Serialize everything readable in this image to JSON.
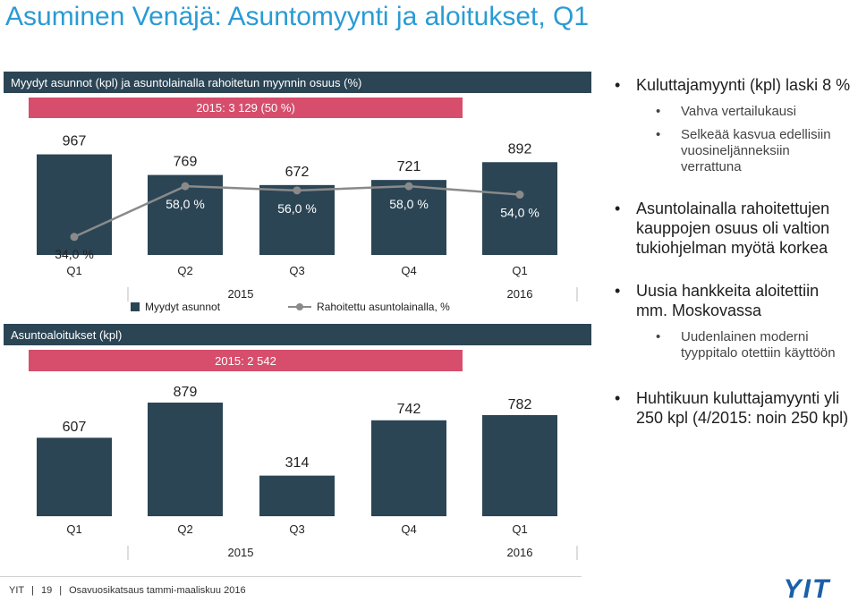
{
  "slide_title": "Asuminen Venäjä: Asuntomyynti ja aloitukset, Q1",
  "colors": {
    "title": "#2a9bd4",
    "bar": "#2b4555",
    "banner": "#d64e6c",
    "line": "#8a8a8a",
    "logo": "#1b5fa8"
  },
  "top_chart": {
    "header": "Myydyt asunnot (kpl) ja asuntolainalla rahoitetun myynnin osuus (%)",
    "banner": "2015: 3 129 (50 %)",
    "legend": {
      "bars": "Myydyt asunnot",
      "line": "Rahoitettu asuntolainalla, %"
    }
  },
  "bottom_chart": {
    "header": "Asuntoaloitukset (kpl)",
    "banner": "2015: 2 542"
  },
  "chart_data": [
    {
      "type": "bar",
      "categories": [
        "Q1",
        "Q2",
        "Q3",
        "Q4",
        "Q1"
      ],
      "year_labels": [
        "2015",
        "2016"
      ],
      "series": [
        {
          "name": "Myydyt asunnot",
          "type": "bar",
          "values": [
            967,
            769,
            672,
            721,
            892
          ],
          "labels": [
            "967",
            "769",
            "672",
            "721",
            "892"
          ]
        },
        {
          "name": "Rahoitettu asuntolainalla, %",
          "type": "line",
          "values": [
            34.0,
            58.0,
            56.0,
            58.0,
            54.0
          ],
          "labels": [
            "34,0 %",
            "58,0 %",
            "56,0 %",
            "58,0 %",
            "54,0 %"
          ]
        }
      ]
    },
    {
      "type": "bar",
      "categories": [
        "Q1",
        "Q2",
        "Q3",
        "Q4",
        "Q1"
      ],
      "year_labels": [
        "2015",
        "2016"
      ],
      "series": [
        {
          "name": "Asuntoaloitukset",
          "values": [
            607,
            879,
            314,
            742,
            782
          ],
          "labels": [
            "607",
            "879",
            "314",
            "742",
            "782"
          ]
        }
      ]
    }
  ],
  "bullets": [
    {
      "level": 1,
      "text": "Kuluttajamyynti (kpl) laski 8 %"
    },
    {
      "level": 2,
      "text": "Vahva vertailukausi"
    },
    {
      "level": 2,
      "text": "Selkeää kasvua edellisiin vuosineljänneksiin verrattuna"
    },
    {
      "level": 1,
      "text": "Asuntolainalla rahoitettujen kauppojen osuus oli valtion tukiohjelman myötä korkea"
    },
    {
      "level": 1,
      "text": "Uusia hankkeita aloitettiin mm. Moskovassa"
    },
    {
      "level": 2,
      "text": "Uudenlainen moderni tyyppitalo otettiin käyttöön"
    },
    {
      "level": 1,
      "text": "Huhtikuun kuluttajamyynti yli 250 kpl (4/2015: noin 250 kpl)"
    }
  ],
  "footer": {
    "company": "YIT",
    "page": "19",
    "report": "Osavuosikatsaus tammi-maaliskuu 2016"
  },
  "logo_text": "YIT"
}
